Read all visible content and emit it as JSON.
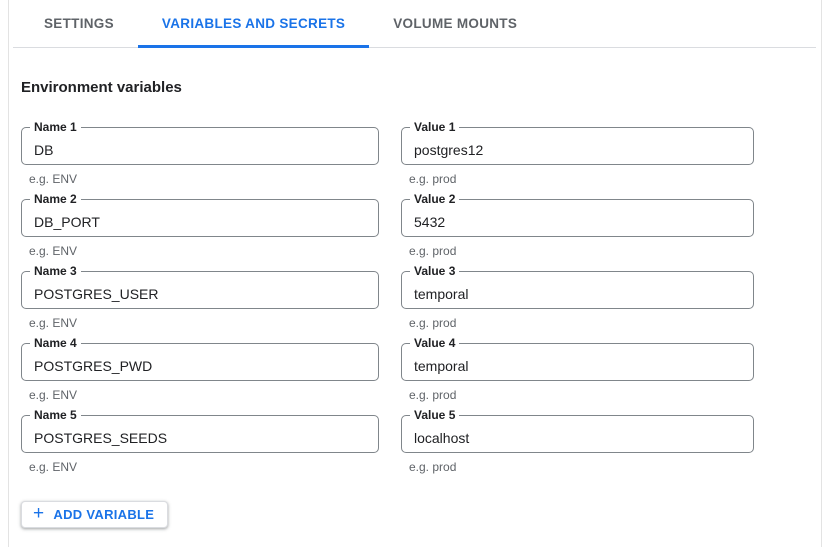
{
  "tabs": [
    {
      "label": "SETTINGS",
      "active": false
    },
    {
      "label": "VARIABLES AND SECRETS",
      "active": true
    },
    {
      "label": "VOLUME MOUNTS",
      "active": false
    }
  ],
  "section_title": "Environment variables",
  "variables": [
    {
      "name_label": "Name 1",
      "name_value": "DB",
      "name_hint": "e.g. ENV",
      "value_label": "Value 1",
      "value_value": "postgres12",
      "value_hint": "e.g. prod"
    },
    {
      "name_label": "Name 2",
      "name_value": "DB_PORT",
      "name_hint": "e.g. ENV",
      "value_label": "Value 2",
      "value_value": "5432",
      "value_hint": "e.g. prod"
    },
    {
      "name_label": "Name 3",
      "name_value": "POSTGRES_USER",
      "name_hint": "e.g. ENV",
      "value_label": "Value 3",
      "value_value": "temporal",
      "value_hint": "e.g. prod"
    },
    {
      "name_label": "Name 4",
      "name_value": "POSTGRES_PWD",
      "name_hint": "e.g. ENV",
      "value_label": "Value 4",
      "value_value": "temporal",
      "value_hint": "e.g. prod"
    },
    {
      "name_label": "Name 5",
      "name_value": "POSTGRES_SEEDS",
      "name_hint": "e.g. ENV",
      "value_label": "Value 5",
      "value_value": "localhost",
      "value_hint": "e.g. prod"
    }
  ],
  "add_button": {
    "icon": "+",
    "label": "ADD VARIABLE"
  },
  "colors": {
    "accent": "#1a73e8",
    "text": "#202124",
    "muted": "#5f6368",
    "field_border": "#80868b",
    "divider": "#dadce0"
  }
}
